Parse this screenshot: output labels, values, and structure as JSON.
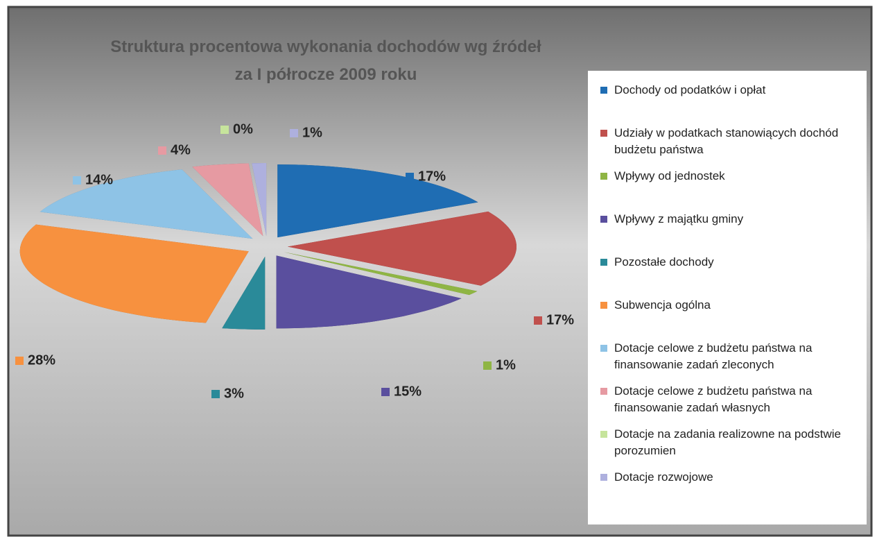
{
  "chart_data": {
    "type": "pie3d",
    "title": [
      "Struktura procentowa wykonania dochodów wg źródeł",
      "za I półrocze 2009 roku"
    ],
    "series": [
      {
        "name": "Dochody od podatków i opłat",
        "color": "#1f6db3",
        "values": [
          17
        ],
        "value_labels": [
          "17%"
        ]
      },
      {
        "name": "Udziały w podatkach stanowiących dochód budżetu państwa",
        "color": "#c0504d",
        "values": [
          17
        ],
        "value_labels": [
          "17%"
        ]
      },
      {
        "name": "Wpływy od jednostek",
        "color": "#8fb544",
        "values": [
          1
        ],
        "value_labels": [
          "1%"
        ]
      },
      {
        "name": "Wpływy z majątku gminy",
        "color": "#5a4f9e",
        "values": [
          15
        ],
        "value_labels": [
          "15%"
        ]
      },
      {
        "name": "Pozostałe dochody",
        "color": "#2a8a99",
        "values": [
          3
        ],
        "value_labels": [
          "3%"
        ]
      },
      {
        "name": "Subwencja ogólna",
        "color": "#f7913f",
        "values": [
          28
        ],
        "value_labels": [
          "28%"
        ]
      },
      {
        "name": "Dotacje celowe z budżetu państwa na finansowanie zadań zleconych",
        "color": "#8ec3e6",
        "values": [
          14
        ],
        "value_labels": [
          "14%"
        ]
      },
      {
        "name": "Dotacje celowe z budżetu państwa na finansowanie zadań własnych",
        "color": "#e69aa2",
        "values": [
          4
        ],
        "value_labels": [
          "4%"
        ]
      },
      {
        "name": "Dotacje na zadania realizowne na podstwie porozumien",
        "color": "#c6e49c",
        "values": [
          0
        ],
        "value_labels": [
          "0%"
        ]
      },
      {
        "name": "Dotacje rozwojowe",
        "color": "#aeb0de",
        "values": [
          1
        ],
        "value_labels": [
          "1%"
        ]
      }
    ]
  }
}
